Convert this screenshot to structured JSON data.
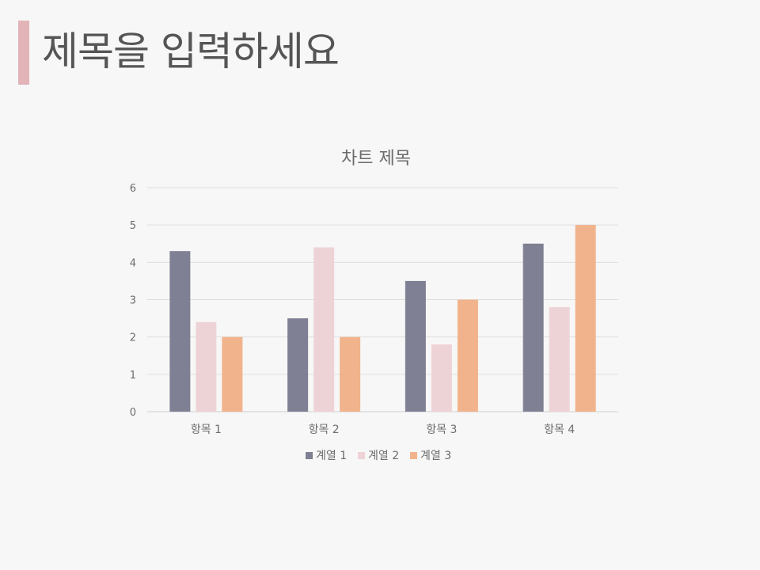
{
  "slide": {
    "title": "제목을 입력하세요",
    "accent_color": "#e2b4b8"
  },
  "chart_data": {
    "type": "bar",
    "title": "차트 제목",
    "categories": [
      "항목 1",
      "항목 2",
      "항목 3",
      "항목 4"
    ],
    "series": [
      {
        "name": "계열 1",
        "values": [
          4.3,
          2.5,
          3.5,
          4.5
        ],
        "color": "#7f8093"
      },
      {
        "name": "계열 2",
        "values": [
          2.4,
          4.4,
          1.8,
          2.8
        ],
        "color": "#eed3d6"
      },
      {
        "name": "계열 3",
        "values": [
          2.0,
          2.0,
          3.0,
          5.0
        ],
        "color": "#f1b38b"
      }
    ],
    "ylim": [
      0,
      6
    ],
    "yticks": [
      0,
      1,
      2,
      3,
      4,
      5,
      6
    ],
    "grid": true,
    "legend_position": "bottom"
  }
}
